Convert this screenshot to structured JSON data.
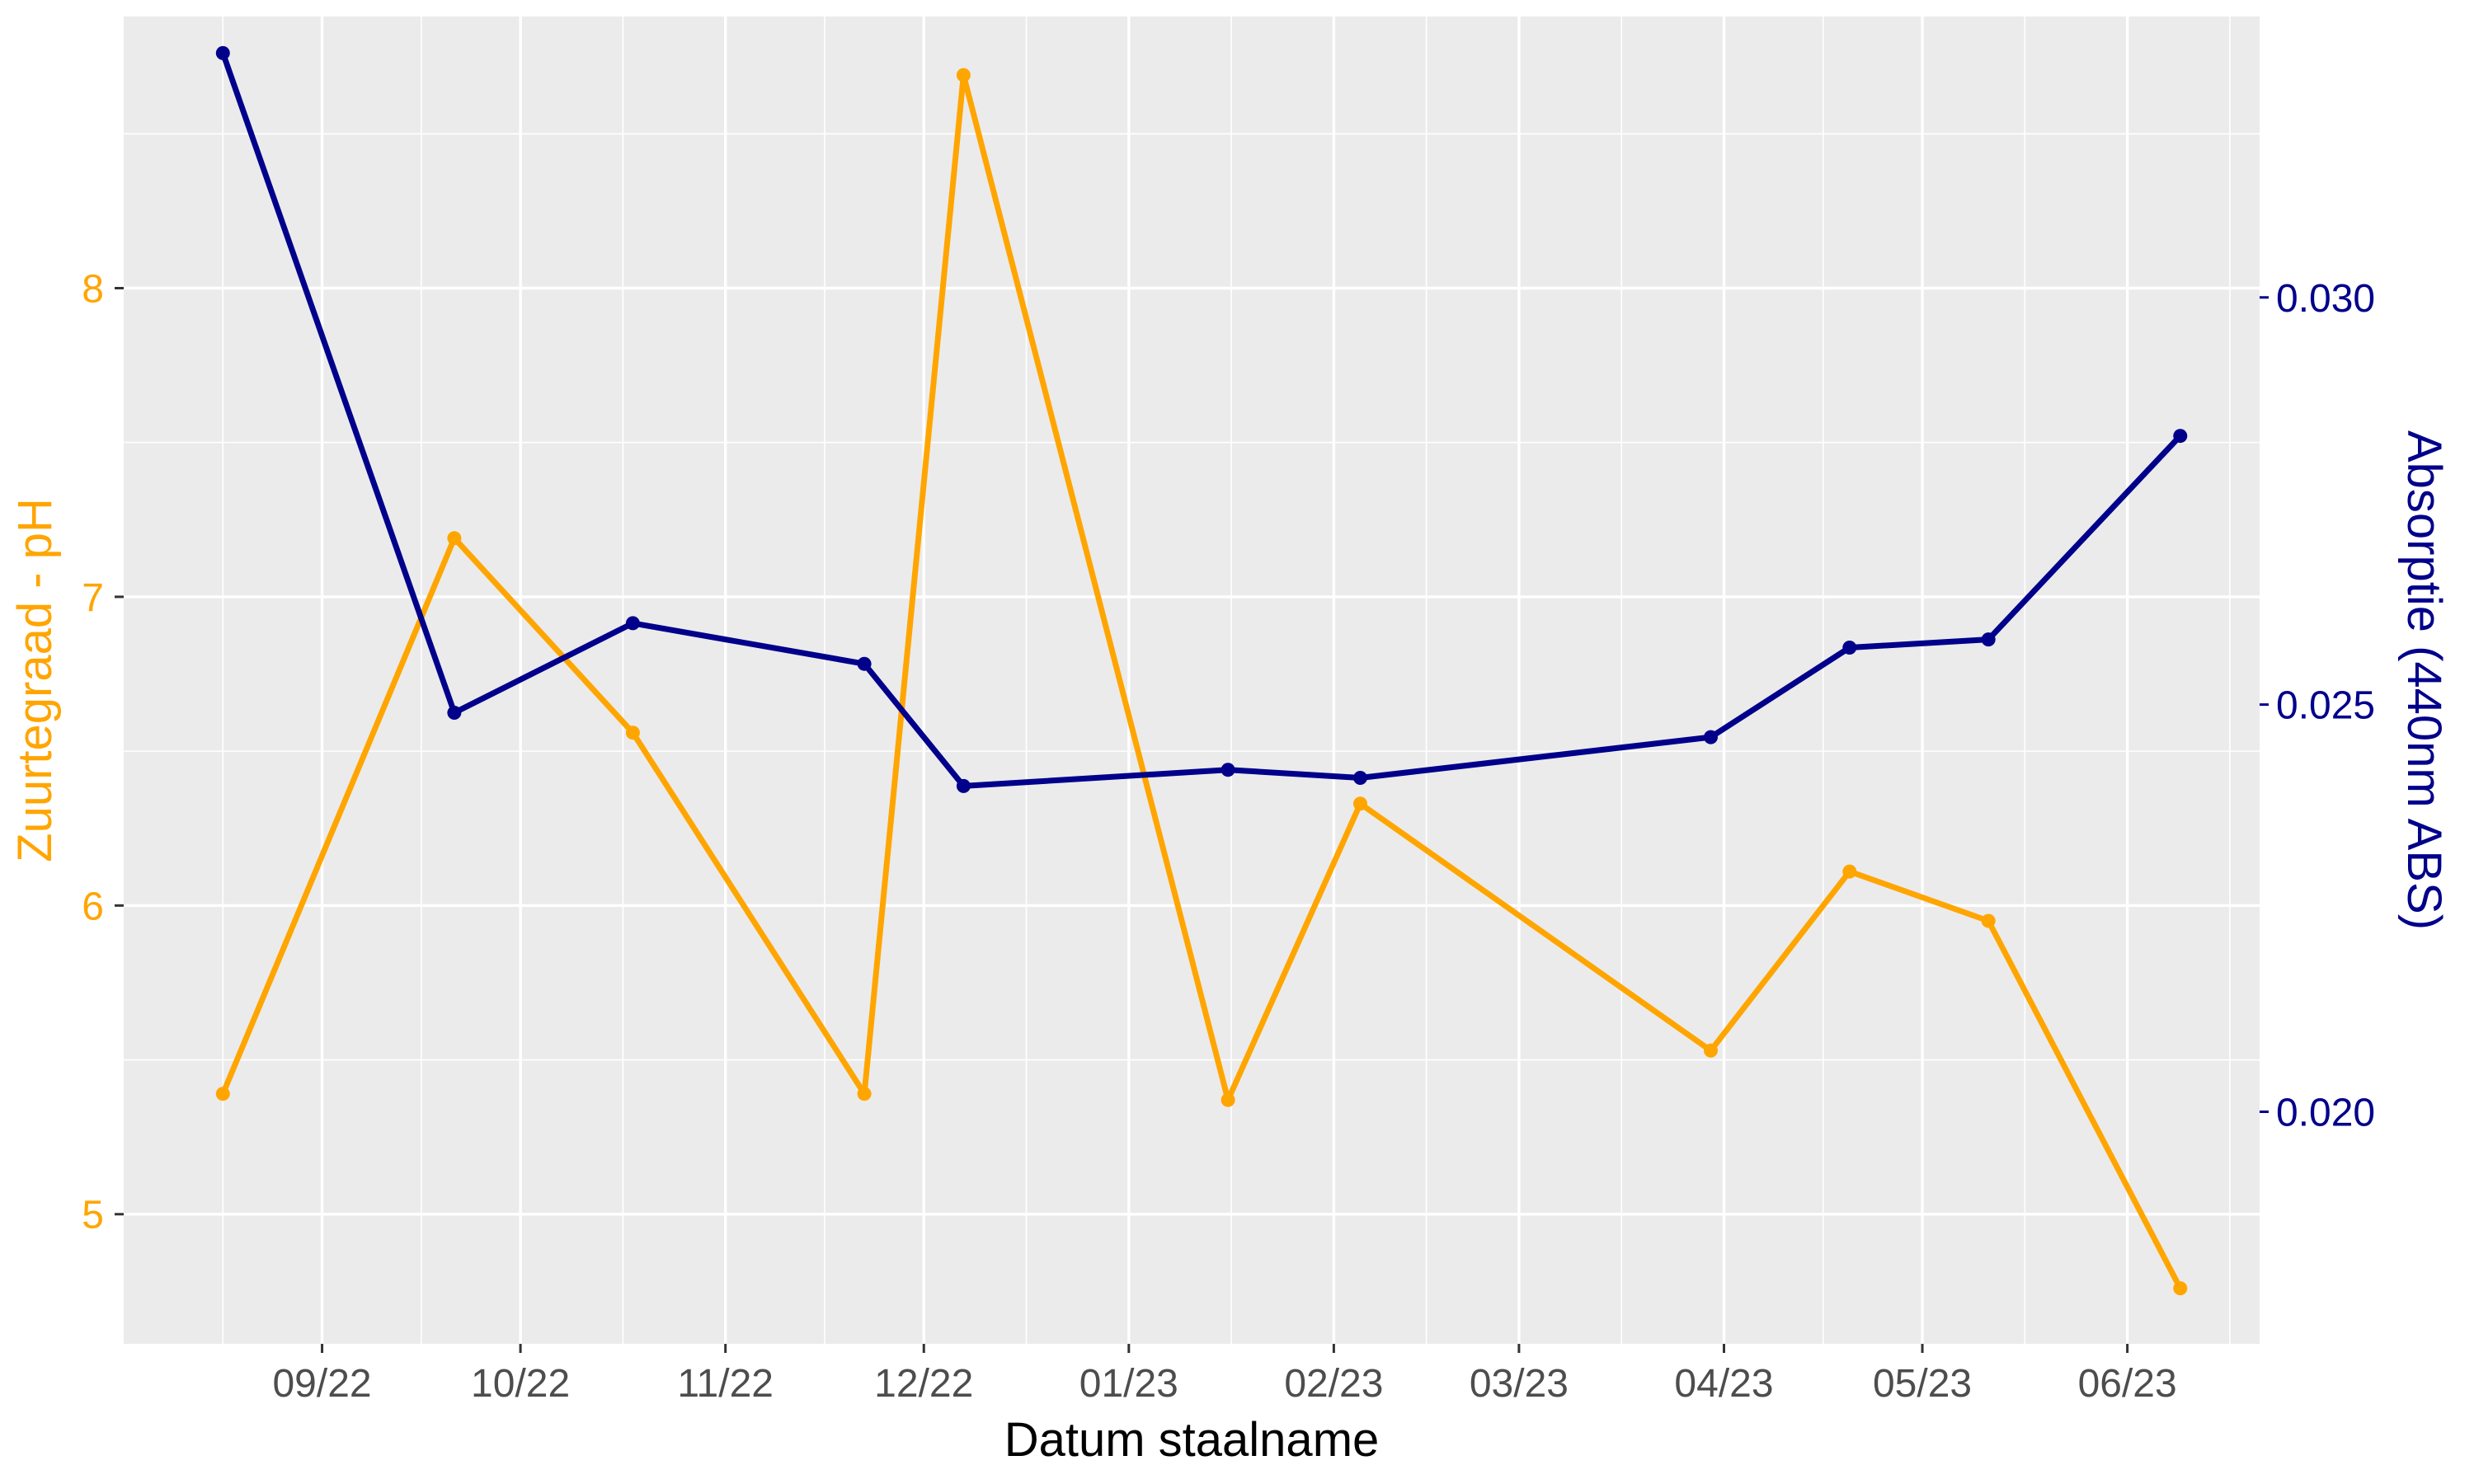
{
  "chart_data": {
    "type": "line",
    "title": "",
    "xlabel": "Datum staalname",
    "ylabel_left": "Zuurtegraad - pH",
    "ylabel_right": "Absorptie (440nm ABS)",
    "x_tick_labels": [
      "09/22",
      "10/22",
      "11/22",
      "12/22",
      "01/23",
      "02/23",
      "03/23",
      "04/23",
      "05/23",
      "06/23"
    ],
    "x_tick_dates": [
      "2022-09-01",
      "2022-10-01",
      "2022-11-01",
      "2022-12-01",
      "2023-01-01",
      "2023-02-01",
      "2023-03-01",
      "2023-04-01",
      "2023-05-01",
      "2023-06-01"
    ],
    "x_range": [
      "2022-08-02",
      "2023-06-21"
    ],
    "y_left_ticks": [
      "5",
      "6",
      "7",
      "8"
    ],
    "y_left_range": [
      4.58,
      8.88
    ],
    "y_right_ticks": [
      "0.020",
      "0.025",
      "0.030"
    ],
    "y_right_range": [
      0.01715,
      0.03345
    ],
    "grid": true,
    "colors": {
      "ph": "#FFA500",
      "absorptie": "#00008B",
      "panel": "#EBEBEB",
      "grid": "#FFFFFF"
    },
    "x": [
      "2022-08-17",
      "2022-09-21",
      "2022-10-18",
      "2022-11-22",
      "2022-12-07",
      "2023-01-16",
      "2023-02-05",
      "2023-03-30",
      "2023-04-20",
      "2023-05-11",
      "2023-06-09"
    ],
    "series": [
      {
        "axis": "left",
        "color": "#FFA500",
        "values": [
          5.39,
          7.19,
          6.56,
          5.39,
          8.69,
          5.37,
          6.33,
          5.53,
          6.11,
          5.95,
          4.76
        ]
      },
      {
        "axis": "right",
        "color": "#00008B",
        "values": [
          0.033,
          0.0249,
          0.026,
          0.0255,
          0.024,
          0.0242,
          0.0241,
          0.0246,
          0.0257,
          0.0258,
          0.0283
        ]
      }
    ]
  }
}
